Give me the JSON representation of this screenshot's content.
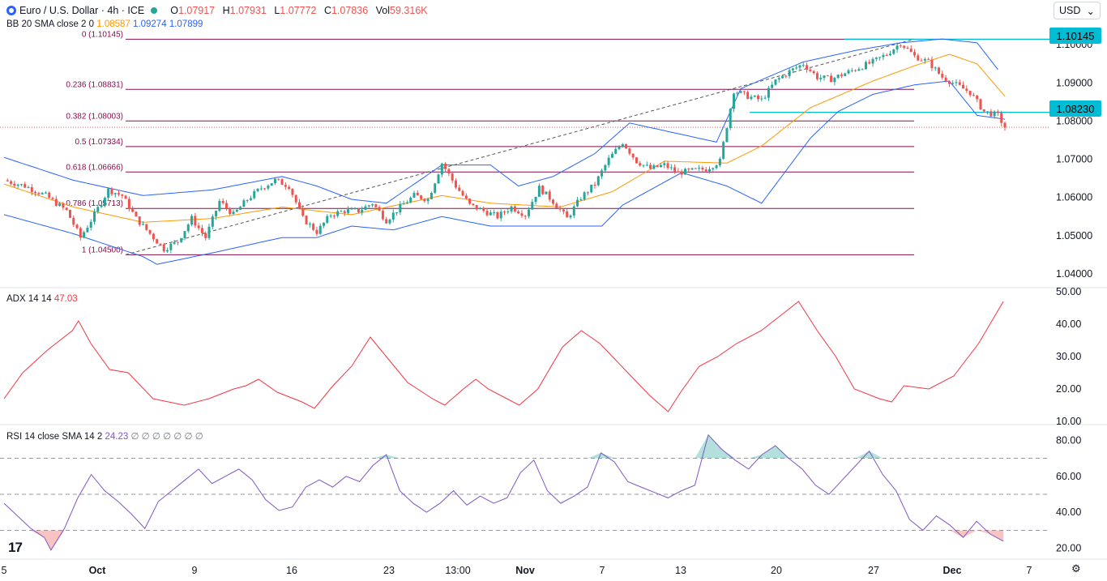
{
  "header": {
    "symbol": "Euro / U.S. Dollar · 4h · ICE",
    "o_label": "O",
    "o": "1.07917",
    "h_label": "H",
    "h": "1.07931",
    "l_label": "L",
    "l": "1.07772",
    "c_label": "C",
    "c": "1.07836",
    "vol_label": "Vol",
    "vol": "59.316K",
    "currency": "USD"
  },
  "bb_legend": {
    "label": "BB 20 SMA close 2 0",
    "basis": "1.08587",
    "upper": "1.09274",
    "lower": "1.07899"
  },
  "adx_legend": {
    "label": "ADX 14 14",
    "value": "47.03"
  },
  "rsi_legend": {
    "label": "RSI 14 close SMA 14 2",
    "value": "24.23",
    "placeholders": "∅ ∅ ∅ ∅ ∅ ∅ ∅"
  },
  "price_tags": {
    "upper": "1.10145",
    "lower": "1.08230"
  },
  "colors": {
    "up": "#26a69a",
    "down": "#ef5350",
    "bb": "#2962ff",
    "basis": "#ff9800",
    "fib": "#880e4f",
    "tag": "#00bcd4",
    "adx": "#f23645",
    "rsi": "#7e57c2"
  },
  "chart_data": [
    {
      "type": "candlestick",
      "title": "Euro / U.S. Dollar · 4h · ICE",
      "x_ticks": [
        "5",
        "Oct",
        "9",
        "16",
        "23",
        "13:00",
        "Nov",
        "7",
        "13",
        "20",
        "27",
        "Dec",
        "7"
      ],
      "y_ticks": [
        "1.04000",
        "1.05000",
        "1.06000",
        "1.07000",
        "1.08000",
        "1.09000",
        "1.10000"
      ],
      "ylim": [
        1.0385,
        1.1045
      ],
      "fib_levels": [
        {
          "label": "0 (1.10145)",
          "value": 1.10145
        },
        {
          "label": "0.236 (1.08831)",
          "value": 1.08831
        },
        {
          "label": "0.382 (1.08003)",
          "value": 1.08003
        },
        {
          "label": "0.5 (1.07334)",
          "value": 1.07334
        },
        {
          "label": "0.618 (1.06666)",
          "value": 1.06666
        },
        {
          "label": "0.786 (1.05713)",
          "value": 1.05713
        },
        {
          "label": "1 (1.04500)",
          "value": 1.045
        }
      ],
      "horizontal_lines": [
        1.10145,
        1.0823
      ],
      "last_price": 1.07836,
      "close_path": [
        [
          0,
          1.0645
        ],
        [
          6,
          1.063
        ],
        [
          12,
          1.0605
        ],
        [
          18,
          1.0565
        ],
        [
          22,
          1.0495
        ],
        [
          26,
          1.0555
        ],
        [
          30,
          1.062
        ],
        [
          34,
          1.0605
        ],
        [
          38,
          1.0545
        ],
        [
          42,
          1.0505
        ],
        [
          46,
          1.0465
        ],
        [
          50,
          1.0485
        ],
        [
          54,
          1.0545
        ],
        [
          58,
          1.0495
        ],
        [
          62,
          1.059
        ],
        [
          66,
          1.0555
        ],
        [
          70,
          1.0595
        ],
        [
          74,
          1.0625
        ],
        [
          78,
          1.0645
        ],
        [
          82,
          1.063
        ],
        [
          86,
          1.0545
        ],
        [
          90,
          1.051
        ],
        [
          94,
          1.0555
        ],
        [
          98,
          1.0565
        ],
        [
          102,
          1.0565
        ],
        [
          106,
          1.0585
        ],
        [
          110,
          1.054
        ],
        [
          114,
          1.0575
        ],
        [
          118,
          1.0605
        ],
        [
          122,
          1.0595
        ],
        [
          126,
          1.069
        ],
        [
          130,
          1.063
        ],
        [
          134,
          1.058
        ],
        [
          138,
          1.0565
        ],
        [
          142,
          1.055
        ],
        [
          146,
          1.0575
        ],
        [
          150,
          1.0555
        ],
        [
          154,
          1.0625
        ],
        [
          158,
          1.059
        ],
        [
          162,
          1.0545
        ],
        [
          166,
          1.06
        ],
        [
          170,
          1.0635
        ],
        [
          174,
          1.07
        ],
        [
          178,
          1.0745
        ],
        [
          182,
          1.0695
        ],
        [
          186,
          1.0675
        ],
        [
          190,
          1.0685
        ],
        [
          194,
          1.0665
        ],
        [
          198,
          1.067
        ],
        [
          202,
          1.0675
        ],
        [
          206,
          1.0695
        ],
        [
          210,
          1.088
        ],
        [
          214,
          1.0865
        ],
        [
          218,
          1.0855
        ],
        [
          222,
          1.0905
        ],
        [
          226,
          1.093
        ],
        [
          230,
          1.095
        ],
        [
          234,
          1.0915
        ],
        [
          238,
          1.091
        ],
        [
          242,
          1.0925
        ],
        [
          246,
          1.094
        ],
        [
          250,
          1.0955
        ],
        [
          254,
          1.0975
        ],
        [
          258,
          1.1005
        ],
        [
          262,
          1.097
        ],
        [
          266,
          1.0955
        ],
        [
          270,
          1.0915
        ],
        [
          274,
          1.0895
        ],
        [
          278,
          1.0875
        ],
        [
          282,
          1.0825
        ],
        [
          286,
          1.0815
        ],
        [
          288,
          1.07836
        ]
      ],
      "bb_upper_path": [
        [
          0,
          1.0705
        ],
        [
          20,
          1.0645
        ],
        [
          40,
          1.0605
        ],
        [
          60,
          1.062
        ],
        [
          80,
          1.0655
        ],
        [
          90,
          1.063
        ],
        [
          100,
          1.0595
        ],
        [
          110,
          1.0585
        ],
        [
          126,
          1.0685
        ],
        [
          140,
          1.0685
        ],
        [
          148,
          1.063
        ],
        [
          158,
          1.0655
        ],
        [
          170,
          1.0715
        ],
        [
          180,
          1.0795
        ],
        [
          195,
          1.0765
        ],
        [
          205,
          1.0745
        ],
        [
          212,
          1.0885
        ],
        [
          230,
          1.0955
        ],
        [
          245,
          1.0985
        ],
        [
          258,
          1.1005
        ],
        [
          270,
          1.1015
        ],
        [
          280,
          1.1005
        ],
        [
          286,
          1.0935
        ]
      ],
      "bb_lower_path": [
        [
          0,
          1.0555
        ],
        [
          20,
          1.0505
        ],
        [
          40,
          1.0445
        ],
        [
          44,
          1.0425
        ],
        [
          60,
          1.0455
        ],
        [
          80,
          1.0495
        ],
        [
          90,
          1.0495
        ],
        [
          100,
          1.0525
        ],
        [
          112,
          1.0515
        ],
        [
          126,
          1.055
        ],
        [
          140,
          1.0525
        ],
        [
          160,
          1.0525
        ],
        [
          172,
          1.0525
        ],
        [
          178,
          1.058
        ],
        [
          195,
          1.0665
        ],
        [
          208,
          1.063
        ],
        [
          218,
          1.0585
        ],
        [
          232,
          1.0755
        ],
        [
          240,
          1.0825
        ],
        [
          250,
          1.087
        ],
        [
          262,
          1.0895
        ],
        [
          272,
          1.0905
        ],
        [
          280,
          1.0815
        ],
        [
          288,
          1.0805
        ]
      ],
      "bb_basis_path": [
        [
          0,
          1.0635
        ],
        [
          20,
          1.0575
        ],
        [
          40,
          1.0535
        ],
        [
          60,
          1.0545
        ],
        [
          80,
          1.0575
        ],
        [
          100,
          1.0555
        ],
        [
          126,
          1.0605
        ],
        [
          140,
          1.0585
        ],
        [
          160,
          1.0575
        ],
        [
          175,
          1.0615
        ],
        [
          190,
          1.0695
        ],
        [
          208,
          1.069
        ],
        [
          218,
          1.0735
        ],
        [
          232,
          1.0835
        ],
        [
          250,
          1.0905
        ],
        [
          262,
          1.0945
        ],
        [
          272,
          1.0975
        ],
        [
          280,
          1.095
        ],
        [
          288,
          1.0865
        ]
      ]
    },
    {
      "type": "line",
      "title": "ADX 14 14",
      "y_ticks": [
        "10.00",
        "20.00",
        "30.00",
        "40.00",
        "50.00"
      ],
      "ylim": [
        9,
        51
      ],
      "series": [
        {
          "name": "ADX",
          "points": [
            [
              0,
              17
            ],
            [
              6,
              25
            ],
            [
              14,
              32
            ],
            [
              22,
              38
            ],
            [
              24,
              41
            ],
            [
              28,
              34
            ],
            [
              34,
              26
            ],
            [
              40,
              25
            ],
            [
              48,
              17
            ],
            [
              58,
              15
            ],
            [
              66,
              17
            ],
            [
              74,
              20
            ],
            [
              78,
              21
            ],
            [
              82,
              23
            ],
            [
              88,
              19
            ],
            [
              96,
              16
            ],
            [
              100,
              14
            ],
            [
              106,
              21
            ],
            [
              112,
              27
            ],
            [
              118,
              36
            ],
            [
              124,
              29
            ],
            [
              130,
              22
            ],
            [
              138,
              17
            ],
            [
              142,
              15
            ],
            [
              148,
              20
            ],
            [
              152,
              23
            ],
            [
              156,
              20
            ],
            [
              162,
              17
            ],
            [
              166,
              15
            ],
            [
              172,
              20
            ],
            [
              180,
              33
            ],
            [
              186,
              38
            ],
            [
              192,
              34
            ],
            [
              200,
              26
            ],
            [
              208,
              18
            ],
            [
              214,
              13
            ],
            [
              218,
              19
            ],
            [
              224,
              27
            ],
            [
              230,
              30
            ],
            [
              236,
              34
            ],
            [
              244,
              38
            ],
            [
              252,
              44
            ],
            [
              256,
              47
            ],
            [
              262,
              38
            ],
            [
              268,
              30
            ],
            [
              274,
              20
            ],
            [
              282,
              17
            ],
            [
              286,
              16
            ],
            [
              290,
              21
            ],
            [
              298,
              20
            ],
            [
              306,
              24
            ],
            [
              314,
              34
            ],
            [
              322,
              47
            ]
          ]
        }
      ]
    },
    {
      "type": "line",
      "title": "RSI 14 close SMA 14 2",
      "y_ticks": [
        "20.00",
        "40.00",
        "60.00",
        "80.00"
      ],
      "ylim": [
        14,
        86
      ],
      "bands": [
        70,
        50,
        30
      ],
      "series": [
        {
          "name": "RSI",
          "points": [
            [
              0,
              45
            ],
            [
              4,
              38
            ],
            [
              8,
              31
            ],
            [
              12,
              26
            ],
            [
              14,
              19
            ],
            [
              18,
              31
            ],
            [
              22,
              48
            ],
            [
              26,
              61
            ],
            [
              30,
              52
            ],
            [
              34,
              46
            ],
            [
              38,
              39
            ],
            [
              42,
              31
            ],
            [
              46,
              46
            ],
            [
              50,
              52
            ],
            [
              54,
              58
            ],
            [
              58,
              64
            ],
            [
              62,
              56
            ],
            [
              66,
              60
            ],
            [
              70,
              64
            ],
            [
              74,
              58
            ],
            [
              78,
              47
            ],
            [
              82,
              41
            ],
            [
              86,
              43
            ],
            [
              90,
              54
            ],
            [
              94,
              58
            ],
            [
              98,
              54
            ],
            [
              102,
              60
            ],
            [
              106,
              57
            ],
            [
              110,
              66
            ],
            [
              114,
              72
            ],
            [
              118,
              52
            ],
            [
              122,
              45
            ],
            [
              126,
              40
            ],
            [
              130,
              45
            ],
            [
              134,
              52
            ],
            [
              138,
              44
            ],
            [
              142,
              49
            ],
            [
              146,
              45
            ],
            [
              150,
              48
            ],
            [
              154,
              62
            ],
            [
              158,
              69
            ],
            [
              162,
              52
            ],
            [
              166,
              45
            ],
            [
              170,
              49
            ],
            [
              174,
              54
            ],
            [
              178,
              73
            ],
            [
              182,
              68
            ],
            [
              186,
              57
            ],
            [
              190,
              54
            ],
            [
              194,
              51
            ],
            [
              198,
              48
            ],
            [
              202,
              52
            ],
            [
              206,
              55
            ],
            [
              210,
              83
            ],
            [
              214,
              75
            ],
            [
              218,
              69
            ],
            [
              222,
              64
            ],
            [
              226,
              72
            ],
            [
              230,
              77
            ],
            [
              234,
              70
            ],
            [
              238,
              64
            ],
            [
              242,
              55
            ],
            [
              246,
              50
            ],
            [
              250,
              58
            ],
            [
              254,
              66
            ],
            [
              258,
              74
            ],
            [
              262,
              61
            ],
            [
              266,
              52
            ],
            [
              270,
              36
            ],
            [
              274,
              30
            ],
            [
              278,
              38
            ],
            [
              282,
              33
            ],
            [
              286,
              26
            ],
            [
              290,
              35
            ],
            [
              294,
              28
            ],
            [
              298,
              24
            ]
          ]
        }
      ]
    }
  ]
}
